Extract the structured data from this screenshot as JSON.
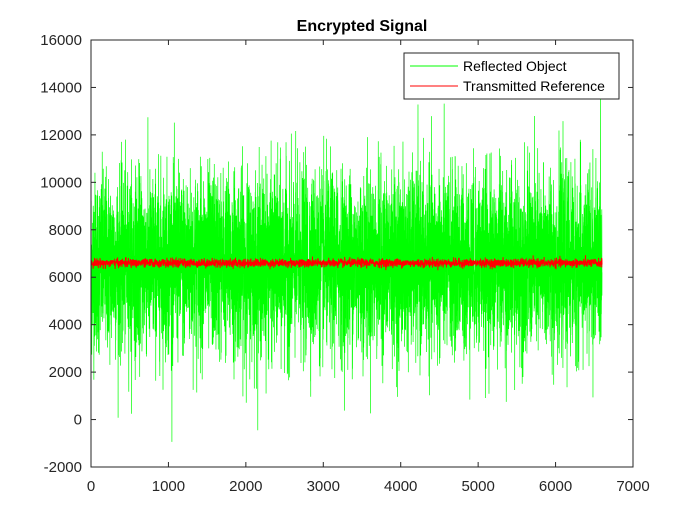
{
  "chart_data": {
    "type": "line",
    "title": "Encrypted Signal",
    "xlabel": "",
    "ylabel": "",
    "xlim": [
      0,
      7000
    ],
    "ylim": [
      -2000,
      16000
    ],
    "x_ticks": [
      0,
      1000,
      2000,
      3000,
      4000,
      5000,
      6000,
      7000
    ],
    "y_ticks": [
      -2000,
      0,
      2000,
      4000,
      6000,
      8000,
      10000,
      12000,
      14000,
      16000
    ],
    "x_tick_labels": [
      "0",
      "1000",
      "2000",
      "3000",
      "4000",
      "5000",
      "6000",
      "7000"
    ],
    "y_tick_labels": [
      "-2000",
      "0",
      "2000",
      "4000",
      "6000",
      "8000",
      "10000",
      "12000",
      "14000",
      "16000"
    ],
    "grid": false,
    "legend_position": "top-right",
    "series": [
      {
        "name": "Reflected Object",
        "color": "#00ff00",
        "x_range": [
          0,
          6600
        ],
        "mean": 6600,
        "typical_range": [
          3000,
          10500
        ],
        "max": 13900,
        "min": -1700
      },
      {
        "name": "Transmitted Reference",
        "color": "#ff0000",
        "x_range": [
          0,
          6600
        ],
        "mean": 6600,
        "typical_range": [
          6400,
          6850
        ]
      }
    ]
  }
}
